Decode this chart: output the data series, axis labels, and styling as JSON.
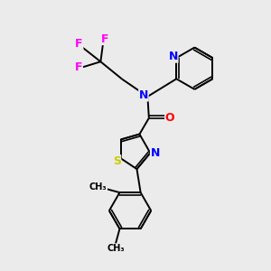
{
  "background_color": "#ebebeb",
  "bond_color": "#000000",
  "atom_colors": {
    "N": "#0000ff",
    "S": "#cccc00",
    "O": "#ff0000",
    "F": "#ff00ff",
    "C": "#000000"
  },
  "figsize": [
    3.0,
    3.0
  ],
  "dpi": 100,
  "lw": 1.4,
  "lw_dbl": 1.2
}
